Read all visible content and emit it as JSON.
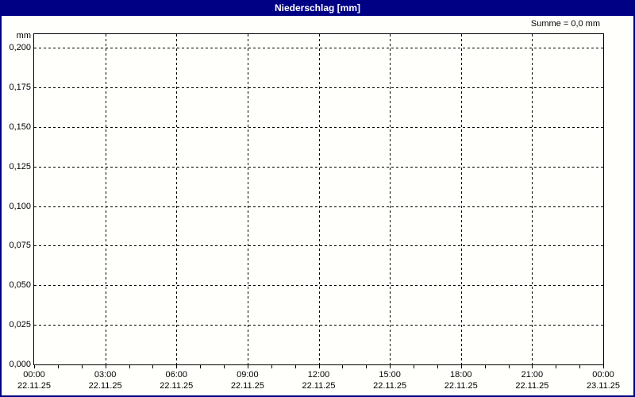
{
  "window": {
    "title": "Niederschlag [mm]"
  },
  "summary": {
    "text": "Summe = 0,0 mm"
  },
  "colors": {
    "titlebar_bg": "#000084",
    "titlebar_text": "#ffffff",
    "frame": "#000084",
    "grid": "#000000",
    "text": "#000000",
    "background": "#fffffc"
  },
  "chart_data": {
    "type": "line",
    "title": "Niederschlag [mm]",
    "xlabel": "",
    "ylabel": "mm",
    "ylim": [
      0.0,
      0.21
    ],
    "grid": true,
    "grid_style": "dashed",
    "legend": "none",
    "y_ticks": [
      {
        "label": "0,200",
        "value": 0.2
      },
      {
        "label": "0,175",
        "value": 0.175
      },
      {
        "label": "0,150",
        "value": 0.15
      },
      {
        "label": "0,125",
        "value": 0.125
      },
      {
        "label": "0,100",
        "value": 0.1
      },
      {
        "label": "0,075",
        "value": 0.075
      },
      {
        "label": "0,050",
        "value": 0.05
      },
      {
        "label": "0,025",
        "value": 0.025
      },
      {
        "label": "0,000",
        "value": 0.0
      }
    ],
    "x_ticks": [
      {
        "time": "00:00",
        "date": "22.11.25"
      },
      {
        "time": "03:00",
        "date": "22.11.25"
      },
      {
        "time": "06:00",
        "date": "22.11.25"
      },
      {
        "time": "09:00",
        "date": "22.11.25"
      },
      {
        "time": "12:00",
        "date": "22.11.25"
      },
      {
        "time": "15:00",
        "date": "22.11.25"
      },
      {
        "time": "18:00",
        "date": "22.11.25"
      },
      {
        "time": "21:00",
        "date": "22.11.25"
      },
      {
        "time": "00:00",
        "date": "23.11.25"
      }
    ],
    "x_span_hours": 24,
    "x_minor_tick_hours": 1,
    "series": [
      {
        "name": "Niederschlag",
        "values": [],
        "sum_mm": 0.0
      }
    ],
    "annotations": [
      "Summe = 0,0 mm"
    ]
  }
}
